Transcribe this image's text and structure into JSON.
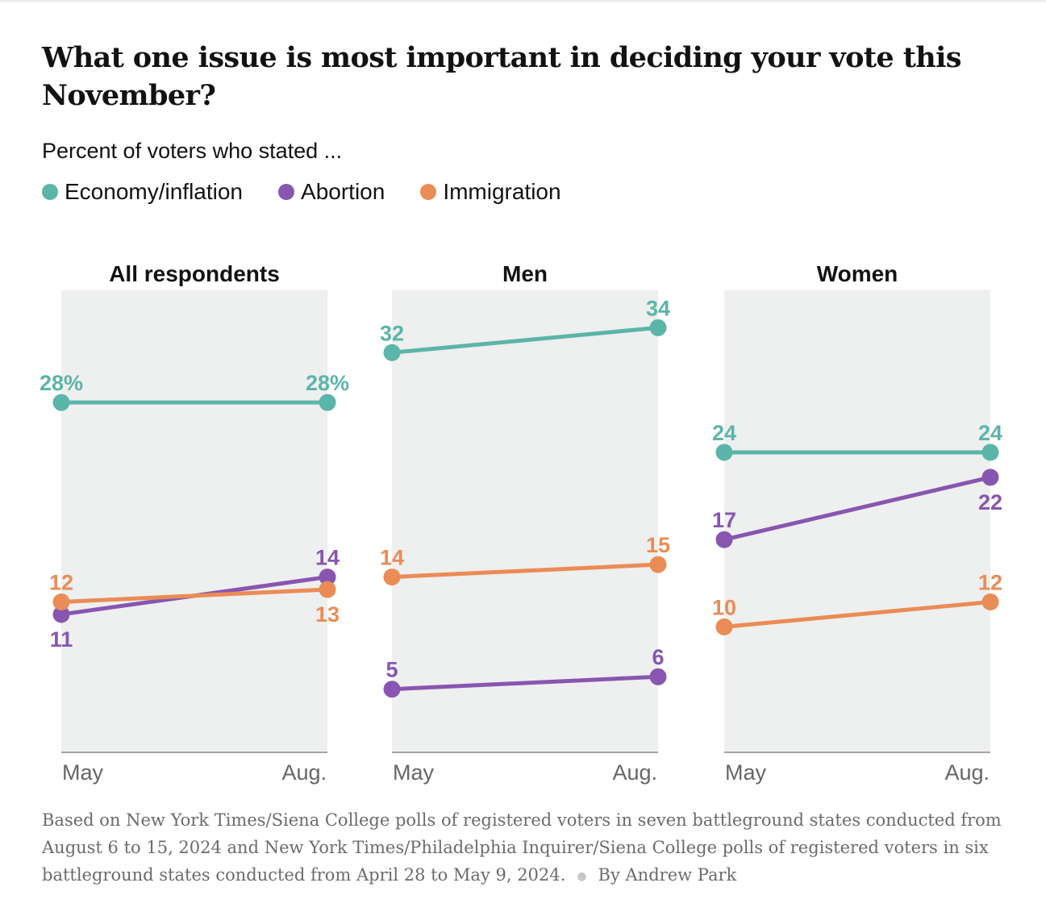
{
  "title": "What one issue is most important in deciding your vote this November?",
  "subtitle": "Percent of voters who stated ...",
  "legend": [
    {
      "label": "Economy/inflation",
      "color": "#5bb5a9"
    },
    {
      "label": "Abortion",
      "color": "#8856b0"
    },
    {
      "label": "Immigration",
      "color": "#ea8c55"
    }
  ],
  "note": {
    "text": "Based on New York Times/Siena College polls of registered voters in seven battleground states conducted from August 6 to 15, 2024 and New York Times/Philadelphia Inquirer/Siena College polls of registered voters in six battleground states conducted from April 28 to May 9, 2024.",
    "separator": "●",
    "byline": "By Andrew Park"
  },
  "chart_data": {
    "type": "line",
    "x": [
      "May",
      "Aug."
    ],
    "series_names": [
      "Economy/inflation",
      "Abortion",
      "Immigration"
    ],
    "colors": [
      "#5bb5a9",
      "#8856b0",
      "#ea8c55"
    ],
    "grid": false,
    "ylim": [
      0,
      37
    ],
    "panels": [
      {
        "title": "All respondents",
        "series": [
          {
            "name": "Economy/inflation",
            "values": [
              28,
              28
            ],
            "labels": [
              "28%",
              "28%"
            ]
          },
          {
            "name": "Abortion",
            "values": [
              11,
              14
            ],
            "labels": [
              "11",
              "14"
            ]
          },
          {
            "name": "Immigration",
            "values": [
              12,
              13
            ],
            "labels": [
              "12",
              "13"
            ]
          }
        ]
      },
      {
        "title": "Men",
        "series": [
          {
            "name": "Economy/inflation",
            "values": [
              32,
              34
            ],
            "labels": [
              "32",
              "34"
            ]
          },
          {
            "name": "Abortion",
            "values": [
              5,
              6
            ],
            "labels": [
              "5",
              "6"
            ]
          },
          {
            "name": "Immigration",
            "values": [
              14,
              15
            ],
            "labels": [
              "14",
              "15"
            ]
          }
        ]
      },
      {
        "title": "Women",
        "series": [
          {
            "name": "Economy/inflation",
            "values": [
              24,
              24
            ],
            "labels": [
              "24",
              "24"
            ]
          },
          {
            "name": "Abortion",
            "values": [
              17,
              22
            ],
            "labels": [
              "17",
              "22"
            ]
          },
          {
            "name": "Immigration",
            "values": [
              10,
              12
            ],
            "labels": [
              "10",
              "12"
            ]
          }
        ]
      }
    ]
  }
}
